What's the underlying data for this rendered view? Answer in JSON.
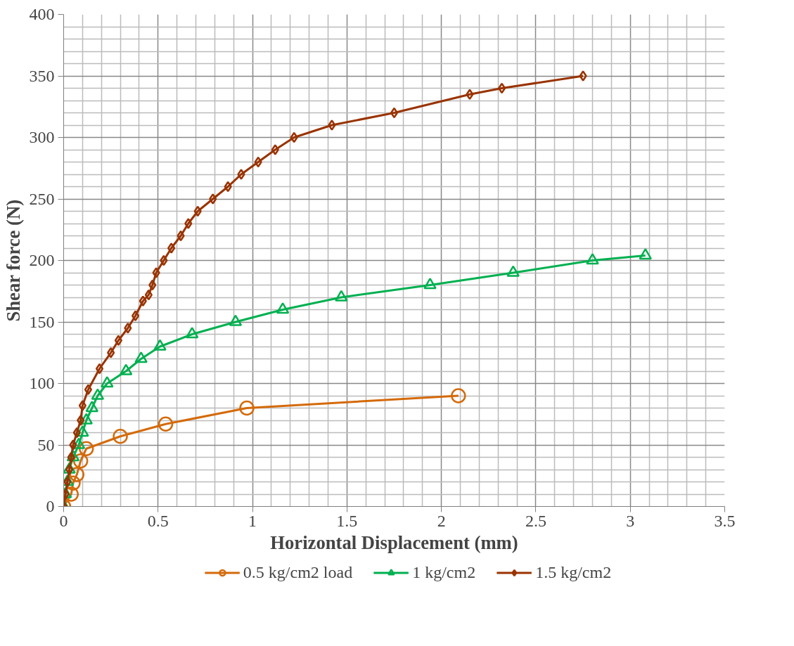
{
  "chart_data": {
    "type": "line",
    "xlabel": "Horizontal Displacement (mm)",
    "ylabel": "Shear force (N)",
    "xlim": [
      0,
      3.5
    ],
    "xticks": [
      0,
      0.5,
      1,
      1.5,
      2,
      2.5,
      3,
      3.5
    ],
    "ylim": [
      0,
      400
    ],
    "yticks": [
      0,
      50,
      100,
      150,
      200,
      250,
      300,
      350,
      400
    ],
    "grid": true,
    "legend": "bottom",
    "series": [
      {
        "name": "0.5 kg/cm2 load",
        "color": "#d46a0a",
        "marker": "circle",
        "x": [
          0,
          0.04,
          0.05,
          0.07,
          0.09,
          0.12,
          0.3,
          0.54,
          0.97,
          2.09
        ],
        "values": [
          0,
          10,
          19,
          26,
          37,
          47,
          57,
          67,
          80,
          90
        ]
      },
      {
        "name": "1 kg/cm2",
        "color": "#00b050",
        "marker": "triangle",
        "x": [
          0,
          0.01,
          0.02,
          0.03,
          0.05,
          0.08,
          0.1,
          0.12,
          0.15,
          0.18,
          0.23,
          0.33,
          0.41,
          0.51,
          0.68,
          0.91,
          1.16,
          1.47,
          1.94,
          2.38,
          2.8,
          3.08
        ],
        "values": [
          0,
          10,
          20,
          30,
          40,
          50,
          60,
          70,
          80,
          90,
          100,
          110,
          120,
          130,
          140,
          150,
          160,
          170,
          180,
          190,
          200,
          204
        ]
      },
      {
        "name": "1.5 kg/cm2",
        "color": "#993300",
        "marker": "diamond",
        "x": [
          0,
          0.01,
          0.02,
          0.03,
          0.04,
          0.05,
          0.07,
          0.09,
          0.1,
          0.13,
          0.19,
          0.25,
          0.29,
          0.34,
          0.38,
          0.42,
          0.45,
          0.47,
          0.49,
          0.53,
          0.57,
          0.62,
          0.66,
          0.71,
          0.79,
          0.87,
          0.94,
          1.03,
          1.12,
          1.22,
          1.42,
          1.75,
          2.15,
          2.32,
          2.75
        ],
        "values": [
          0,
          10,
          20,
          30,
          40,
          50,
          60,
          70,
          82,
          95,
          112,
          125,
          135,
          145,
          155,
          167,
          172,
          180,
          190,
          200,
          210,
          220,
          230,
          240,
          250,
          260,
          270,
          280,
          290,
          300,
          310,
          320,
          335,
          340,
          350
        ]
      }
    ]
  }
}
